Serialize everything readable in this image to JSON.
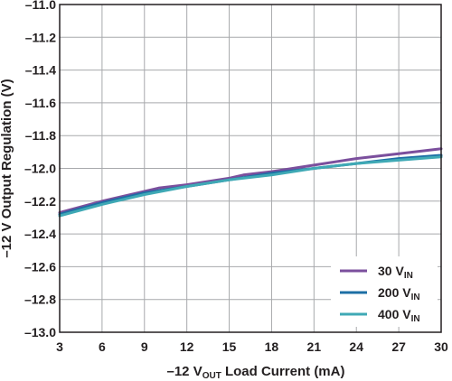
{
  "chart_data": {
    "type": "line",
    "title": "",
    "xlabel": {
      "pre": "–12 V",
      "sub": "OUT",
      "post": " Load Current (mA)"
    },
    "ylabel": "–12 V Output Regulation (V)",
    "xlim": [
      3,
      30
    ],
    "ylim": [
      -13.0,
      -11.0
    ],
    "x_ticks": [
      3,
      6,
      9,
      12,
      15,
      18,
      21,
      24,
      27,
      30
    ],
    "x_tick_labels": [
      "3",
      "6",
      "9",
      "12",
      "15",
      "18",
      "21",
      "24",
      "27",
      "30"
    ],
    "y_ticks": [
      -11.0,
      -11.2,
      -11.4,
      -11.6,
      -11.8,
      -12.0,
      -12.2,
      -12.4,
      -12.6,
      -12.8,
      -13.0
    ],
    "y_tick_labels": [
      "–11.0",
      "–11.2",
      "–11.4",
      "–11.6",
      "–11.8",
      "–12.0",
      "–12.2",
      "–12.4",
      "–12.6",
      "–12.8",
      "–13.0"
    ],
    "y_axis_inverted": true,
    "grid": true,
    "legend_position": "bottom-right",
    "series": [
      {
        "name": "30 V",
        "name_sub": "IN",
        "color": "#7b4f9d",
        "x": [
          3,
          6,
          9,
          10,
          12,
          15,
          16,
          18,
          21,
          24,
          27,
          30
        ],
        "y": [
          -12.27,
          -12.2,
          -12.14,
          -12.12,
          -12.1,
          -12.06,
          -12.04,
          -12.02,
          -11.98,
          -11.94,
          -11.91,
          -11.88
        ]
      },
      {
        "name": "200 V",
        "name_sub": "IN",
        "color": "#1d6fa5",
        "x": [
          3,
          6,
          9,
          12,
          15,
          18,
          21,
          24,
          27,
          30
        ],
        "y": [
          -12.28,
          -12.21,
          -12.15,
          -12.11,
          -12.07,
          -12.03,
          -12.0,
          -11.97,
          -11.94,
          -11.92
        ]
      },
      {
        "name": "400 V",
        "name_sub": "IN",
        "color": "#3fa9b5",
        "x": [
          3,
          6,
          9,
          12,
          15,
          18,
          21,
          24,
          27,
          30
        ],
        "y": [
          -12.29,
          -12.22,
          -12.16,
          -12.11,
          -12.07,
          -12.04,
          -12.0,
          -11.97,
          -11.95,
          -11.93
        ]
      }
    ]
  }
}
